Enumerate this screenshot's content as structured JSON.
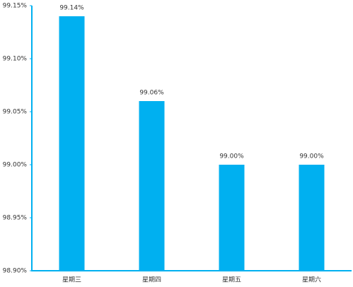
{
  "chart_data": {
    "type": "bar",
    "categories": [
      "星期三",
      "星期四",
      "星期五",
      "星期六"
    ],
    "values": [
      99.14,
      99.06,
      99.0,
      99.0
    ],
    "value_labels": [
      "99.14%",
      "99.06%",
      "99.00%",
      "99.00%"
    ],
    "color": "#00b0f0",
    "ylim": [
      98.9,
      99.15
    ],
    "yticks": [
      {
        "value": 98.9,
        "label": "98.90%"
      },
      {
        "value": 98.95,
        "label": "98.95%"
      },
      {
        "value": 99.0,
        "label": "99.00%"
      },
      {
        "value": 99.05,
        "label": "99.05%"
      },
      {
        "value": 99.1,
        "label": "99.10%"
      },
      {
        "value": 99.15,
        "label": "99.15%"
      }
    ],
    "grid": false
  }
}
